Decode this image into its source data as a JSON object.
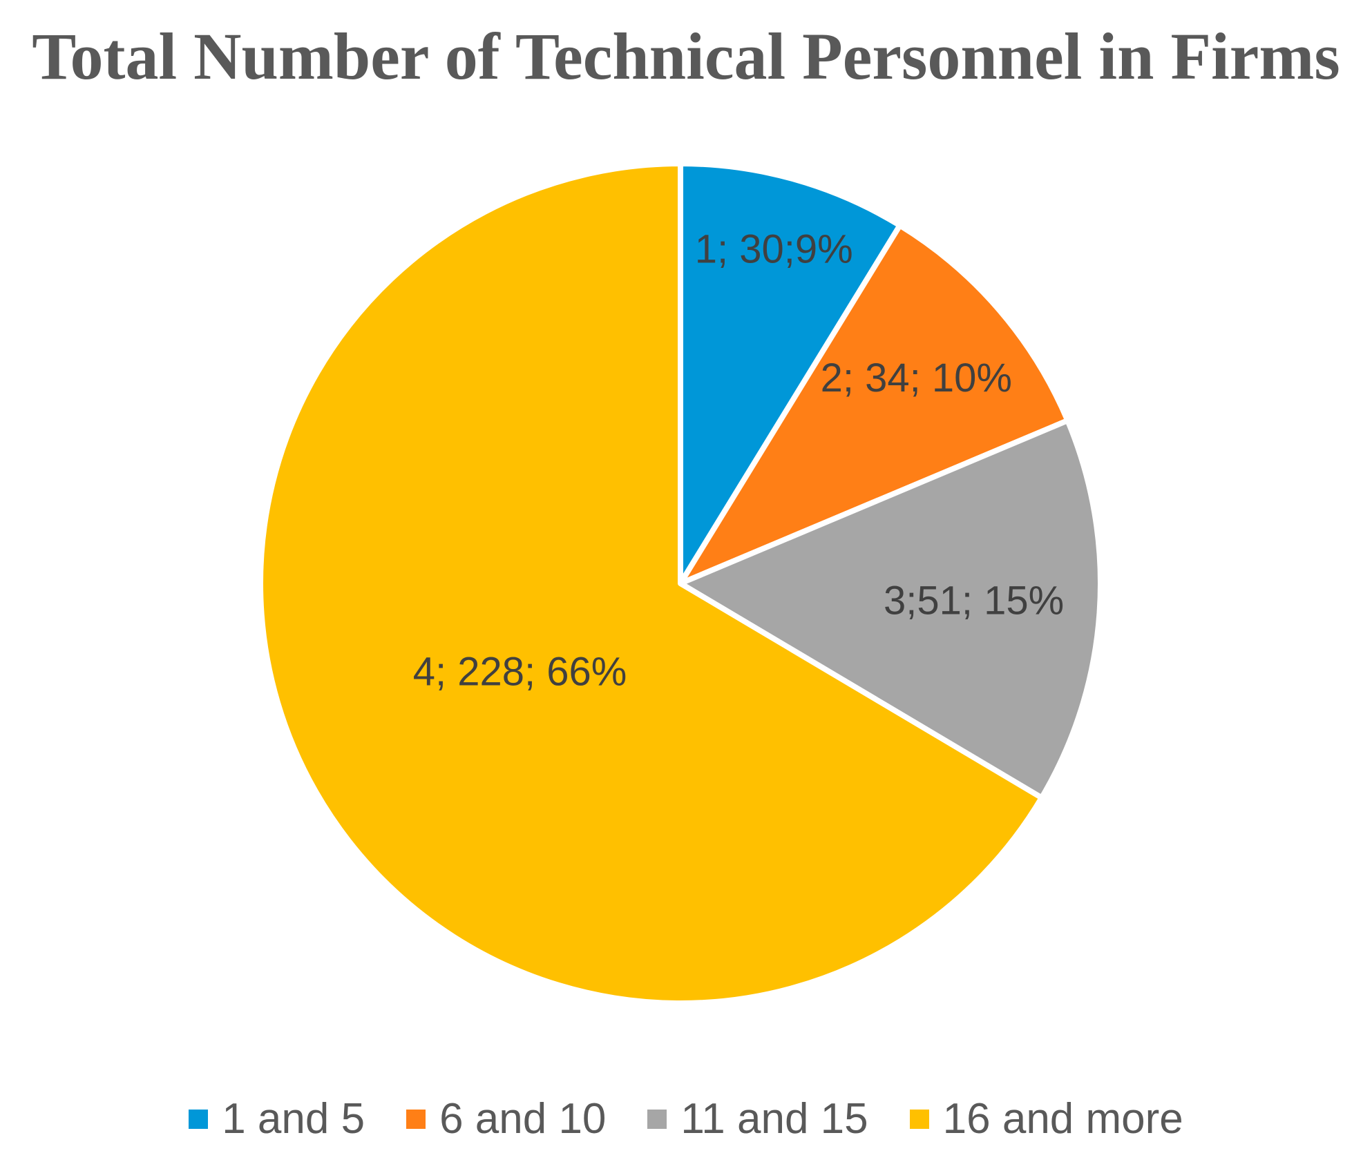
{
  "chart_data": {
    "type": "pie",
    "title": "Total Number of Technical Personnel in Firms",
    "slices": [
      {
        "legend": "1 and 5",
        "value": 30,
        "percent": 9,
        "label": "1; 30;9%",
        "color": "#0097D8"
      },
      {
        "legend": "6 and 10",
        "value": 34,
        "percent": 10,
        "label": "2; 34; 10%",
        "color": "#FF7F16"
      },
      {
        "legend": "11 and 15",
        "value": 51,
        "percent": 15,
        "label": "3;51; 15%",
        "color": "#A6A6A6"
      },
      {
        "legend": "16 and more",
        "value": 228,
        "percent": 66,
        "label": "4; 228; 66%",
        "color": "#FFC000"
      }
    ],
    "legend_position": "bottom",
    "start": "top",
    "direction": "clockwise"
  }
}
